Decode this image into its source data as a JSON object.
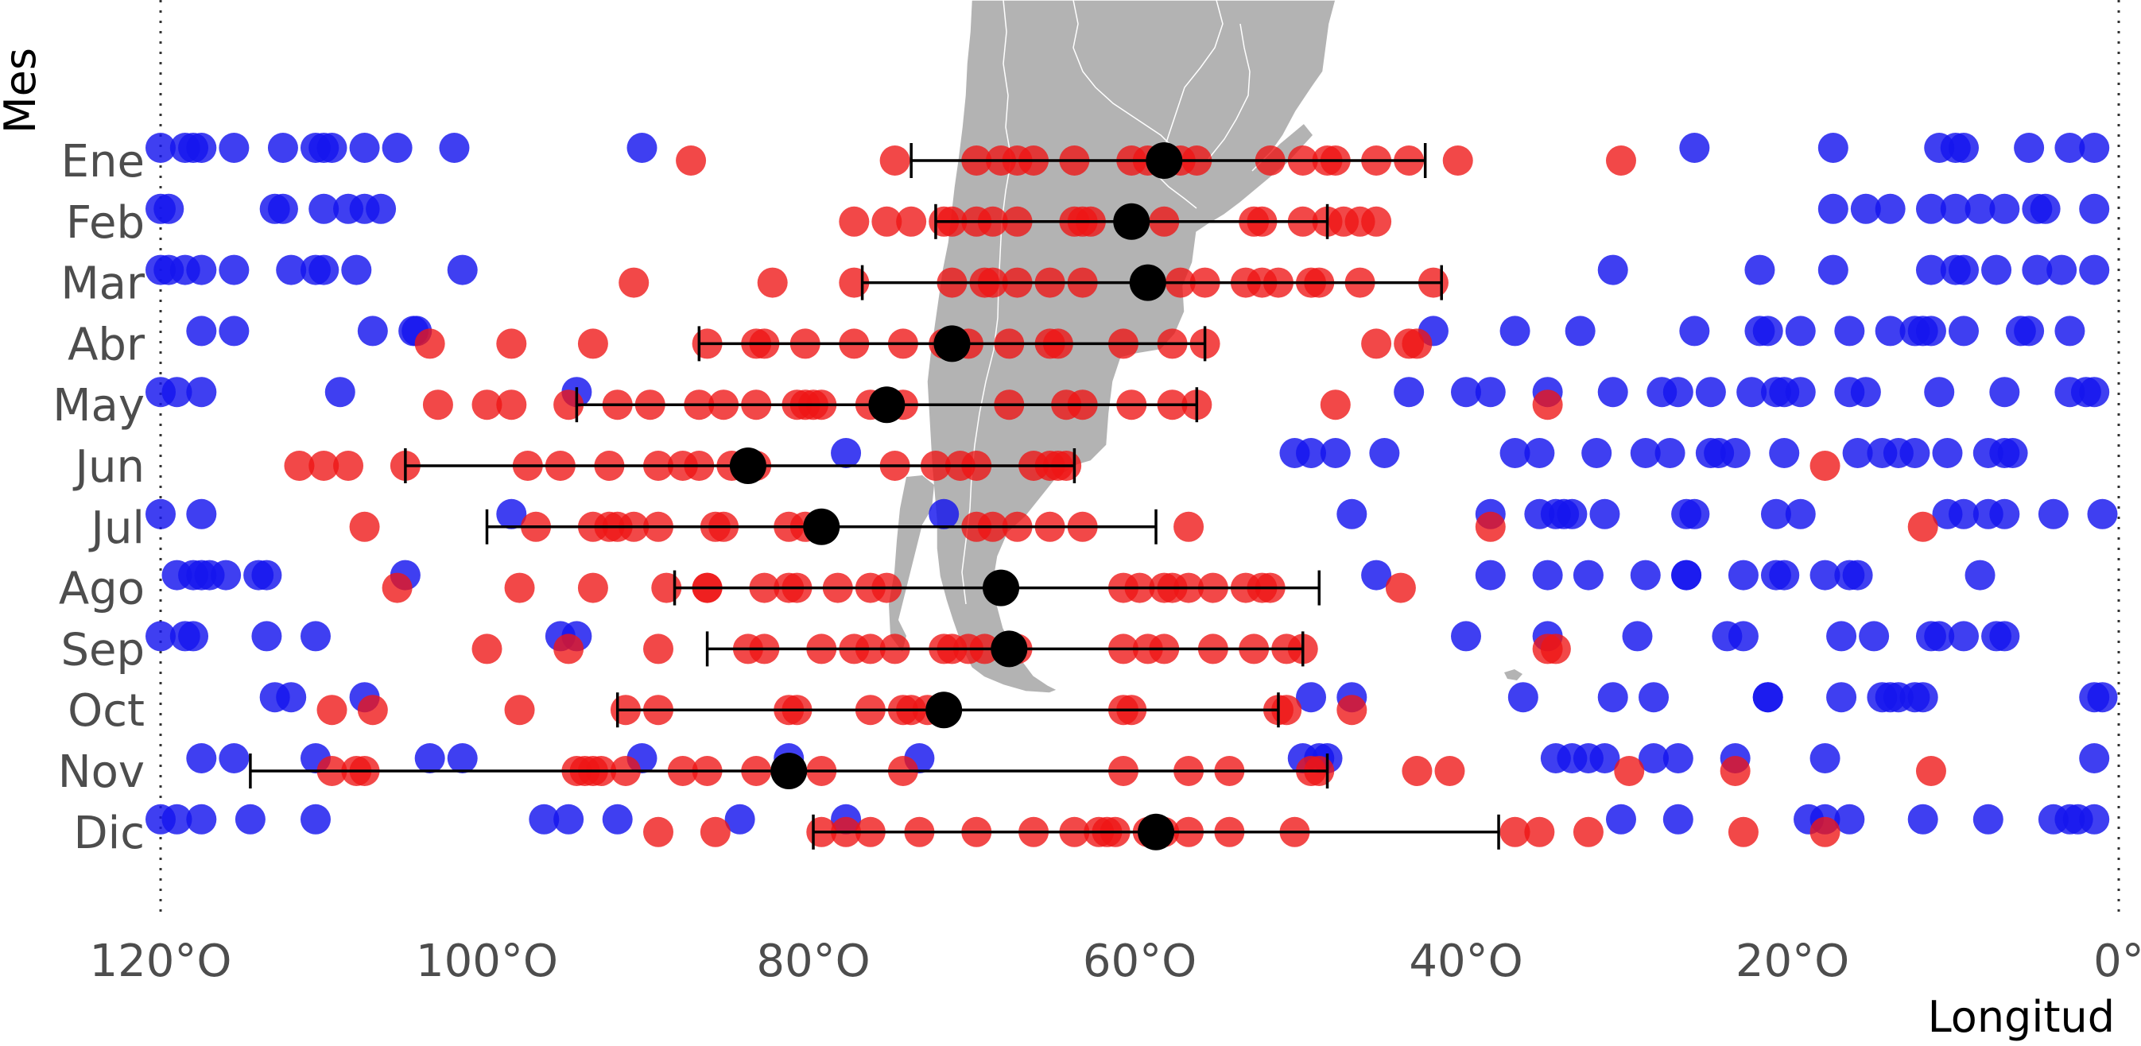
{
  "chart_data": {
    "type": "scatter",
    "title": "",
    "xlabel": "Longitud",
    "ylabel": "Mes",
    "xlim": [
      -120,
      0
    ],
    "x_ticks": [
      "120°O",
      "100°O",
      "80°O",
      "60°O",
      "40°O",
      "20°O",
      "0°"
    ],
    "x_tick_values": [
      -120,
      -100,
      -80,
      -60,
      -40,
      -20,
      0
    ],
    "categories": [
      "Ene",
      "Feb",
      "Mar",
      "Abr",
      "May",
      "Jun",
      "Jul",
      "Ago",
      "Sep",
      "Oct",
      "Nov",
      "Dic"
    ],
    "grid": false,
    "legend": "none",
    "colors": {
      "blue": "#1515ee",
      "red": "#ee1515",
      "mean": "#000000",
      "map": "#b3b3b3"
    },
    "series": [
      {
        "color": "blue",
        "points": {
          "Ene": [
            -120,
            -118.5,
            -118,
            -117.5,
            -115.5,
            -112.5,
            -110.5,
            -110,
            -109.5,
            -107.5,
            -105.5,
            -102,
            -90.5,
            -26,
            -17.5,
            -11,
            -10,
            -9.5,
            -5.5,
            -3,
            -1.5
          ],
          "Feb": [
            -120,
            -119.5,
            -113,
            -112.5,
            -110,
            -108.5,
            -107.5,
            -106.5,
            -17.5,
            -15.5,
            -14,
            -11.5,
            -10,
            -8.5,
            -7,
            -5,
            -4.5,
            -1.5
          ],
          "Mar": [
            -120,
            -119.5,
            -118.5,
            -117.5,
            -115.5,
            -112,
            -110.5,
            -110,
            -108,
            -101.5,
            -31,
            -22,
            -17.5,
            -11.5,
            -10,
            -9.5,
            -7.5,
            -5,
            -3.5,
            -1.5
          ],
          "Abr": [
            -117.5,
            -115.5,
            -107,
            -104.5,
            -104.3,
            -42,
            -37,
            -33,
            -26,
            -22,
            -21.5,
            -19.5,
            -16.5,
            -14,
            -12.5,
            -12,
            -11.5,
            -9.5,
            -6,
            -5.5,
            -3
          ],
          "May": [
            -120,
            -119,
            -117.5,
            -109,
            -94.5,
            -43.5,
            -40,
            -38.5,
            -35,
            -31,
            -28,
            -27,
            -25,
            -22.5,
            -21,
            -20.5,
            -19.5,
            -16.5,
            -15.5,
            -11,
            -7,
            -3,
            -2,
            -1.5
          ],
          "Jun": [
            -78,
            -50.5,
            -49.5,
            -48,
            -45,
            -37,
            -35.5,
            -32,
            -29,
            -27.5,
            -25,
            -24.5,
            -23.5,
            -20.5,
            -16,
            -14.5,
            -13.5,
            -12.5,
            -10.5,
            -8,
            -7,
            -6.5
          ],
          "Jul": [
            -120,
            -117.5,
            -98.5,
            -72,
            -47,
            -38.5,
            -35.5,
            -34.5,
            -34,
            -33.5,
            -31.5,
            -26.5,
            -26,
            -21,
            -19.5,
            -10.5,
            -9.5,
            -8,
            -7,
            -4,
            -1
          ],
          "Ago": [
            -119,
            -118,
            -117.5,
            -117,
            -116,
            -114,
            -113.5,
            -105,
            -45.5,
            -38.5,
            -35,
            -32.5,
            -29,
            -26.5,
            -26.5,
            -23,
            -21,
            -20.5,
            -18,
            -16.5,
            -16,
            -8.5
          ],
          "Sep": [
            -120,
            -118.5,
            -118,
            -113.5,
            -110.5,
            -95.5,
            -94.5,
            -40,
            -35,
            -29.5,
            -24,
            -23,
            -17,
            -15,
            -11.5,
            -11,
            -9.5,
            -7.5,
            -7
          ],
          "Oct": [
            -113,
            -112,
            -107.5,
            -49.5,
            -47,
            -36.5,
            -31,
            -28.5,
            -21.5,
            -21.5,
            -17,
            -14.5,
            -14,
            -13.5,
            -12.5,
            -12,
            -1.5,
            -1
          ],
          "Nov": [
            -117.5,
            -115.5,
            -110.5,
            -103.5,
            -101.5,
            -90.5,
            -81.5,
            -73.5,
            -50,
            -49,
            -48.5,
            -34.5,
            -33.5,
            -32.5,
            -31.5,
            -28.5,
            -27,
            -23.5,
            -18,
            -1.5
          ],
          "Dic": [
            -120,
            -119,
            -117.5,
            -114.5,
            -110.5,
            -96.5,
            -95,
            -92,
            -84.5,
            -78,
            -30.5,
            -27,
            -19,
            -18,
            -16.5,
            -12,
            -8,
            -4,
            -3,
            -2.5,
            -1.5
          ]
        }
      },
      {
        "color": "red",
        "points": {
          "Ene": [
            -87.5,
            -75,
            -70,
            -68.5,
            -67.5,
            -66.5,
            -64,
            -60.5,
            -59.5,
            -57.5,
            -56.5,
            -52,
            -50,
            -48.5,
            -48,
            -45.5,
            -43.5,
            -40.5,
            -30.5
          ],
          "Feb": [
            -77.5,
            -75.5,
            -74,
            -72,
            -71.5,
            -70,
            -69,
            -67.5,
            -64,
            -63.5,
            -63,
            -58.5,
            -53,
            -52.5,
            -50,
            -48.5,
            -47.5,
            -46.5,
            -45.5
          ],
          "Mar": [
            -91,
            -82.5,
            -77.5,
            -71.5,
            -69.5,
            -69,
            -67.5,
            -65.5,
            -63.5,
            -59.5,
            -57.5,
            -56,
            -53.5,
            -52.5,
            -51.5,
            -49.5,
            -49,
            -46.5,
            -42
          ],
          "Abr": [
            -103.5,
            -98.5,
            -93.5,
            -86.5,
            -83.5,
            -83,
            -80.5,
            -77.5,
            -74.5,
            -72,
            -70.5,
            -68,
            -65.5,
            -65,
            -61,
            -58,
            -56,
            -45.5,
            -43.5,
            -43
          ],
          "May": [
            -103,
            -100,
            -98.5,
            -95,
            -92,
            -90,
            -87,
            -85.5,
            -83.5,
            -81,
            -80.5,
            -80,
            -79.5,
            -76.5,
            -74.5,
            -68,
            -64.5,
            -63.5,
            -60.5,
            -58,
            -56.5,
            -48,
            -35
          ],
          "Jun": [
            -111.5,
            -110,
            -108.5,
            -105,
            -97.5,
            -95.5,
            -92.5,
            -89.5,
            -88,
            -87,
            -85,
            -83.5,
            -75,
            -72.5,
            -71,
            -70,
            -66.5,
            -65.5,
            -65,
            -64.5,
            -18
          ],
          "Jul": [
            -107.5,
            -97,
            -93.5,
            -92.5,
            -92,
            -91,
            -89.5,
            -86,
            -85.5,
            -81.5,
            -80.5,
            -79.5,
            -70,
            -69,
            -67.5,
            -65.5,
            -63.5,
            -57,
            -38.5,
            -12
          ],
          "Ago": [
            -105.5,
            -98,
            -93.5,
            -89,
            -86.5,
            -86.5,
            -83,
            -81.5,
            -81,
            -78.5,
            -76.5,
            -75.5,
            -61,
            -60,
            -58.5,
            -58,
            -57,
            -55.5,
            -53.5,
            -52.5,
            -52,
            -44
          ],
          "Sep": [
            -100,
            -95,
            -89.5,
            -84,
            -83,
            -79.5,
            -77.5,
            -76.5,
            -75,
            -72,
            -71.5,
            -70.5,
            -69.5,
            -67.5,
            -61,
            -59.5,
            -58.5,
            -55.5,
            -53,
            -51,
            -50,
            -35,
            -34.5
          ],
          "Oct": [
            -109.5,
            -107,
            -98,
            -91.5,
            -89.5,
            -81.5,
            -81,
            -76.5,
            -74.5,
            -74,
            -73,
            -72,
            -61,
            -60.5,
            -51.5,
            -51,
            -47
          ],
          "Nov": [
            -109.5,
            -108,
            -107.5,
            -94.5,
            -94,
            -93.5,
            -93,
            -91.5,
            -88,
            -86.5,
            -83.5,
            -79.5,
            -74.5,
            -61,
            -57,
            -54.5,
            -49.5,
            -49,
            -43,
            -41,
            -30,
            -23.5,
            -11.5
          ],
          "Dic": [
            -89.5,
            -86,
            -79.5,
            -78,
            -76.5,
            -73.5,
            -70,
            -66.5,
            -64,
            -62.5,
            -62,
            -61.5,
            -59.5,
            -58.5,
            -57,
            -54.5,
            -50.5,
            -37,
            -35.5,
            -32.5,
            -23,
            -18
          ]
        }
      },
      {
        "name": "",
        "color": "mean",
        "points": {
          "Ene": [
            -58.5
          ],
          "Feb": [
            -60.5
          ],
          "Mar": [
            -59.5
          ],
          "Abr": [
            -71.5
          ],
          "May": [
            -75.5
          ],
          "Jun": [
            -84
          ],
          "Jul": [
            -79.5
          ],
          "Ago": [
            -68.5
          ],
          "Sep": [
            -68
          ],
          "Oct": [
            -72
          ],
          "Nov": [
            -81.5
          ],
          "Dic": [
            -59
          ]
        }
      }
    ],
    "error_bars": {
      "Ene": [
        -74,
        -42.5
      ],
      "Feb": [
        -72.5,
        -48.5
      ],
      "Mar": [
        -77,
        -41.5
      ],
      "Abr": [
        -87,
        -56
      ],
      "May": [
        -94.5,
        -56.5
      ],
      "Jun": [
        -105,
        -64
      ],
      "Jul": [
        -100,
        -59
      ],
      "Ago": [
        -88.5,
        -49
      ],
      "Sep": [
        -86.5,
        -50
      ],
      "Oct": [
        -92,
        -51.5
      ],
      "Nov": [
        -114.5,
        -48.5
      ],
      "Dic": [
        -80,
        -38
      ]
    }
  }
}
